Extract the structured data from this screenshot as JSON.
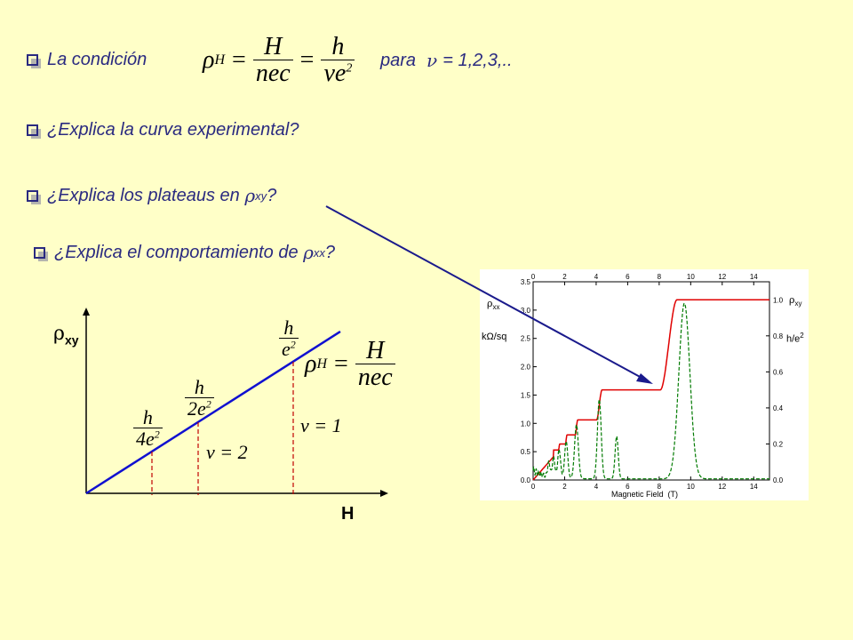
{
  "bullets": {
    "b1_text": "La condición",
    "b1_para": "para",
    "b1_nu": "ν",
    "b1_values": "= 1,2,3,..",
    "b2": "¿Explica la curva experimental?",
    "b3_pre": "¿Explica los plateaus en ",
    "b3_rho": "ρ",
    "b3_sub": "xy",
    "b3_post": "?",
    "b4_pre": "¿Explica el comportamiento de ",
    "b4_rho": "ρ",
    "b4_sub": "xx",
    "b4_post": "?"
  },
  "formula": {
    "rho": "ρ",
    "sub": "H",
    "eq": "=",
    "num1": "H",
    "den1": "nec",
    "num2": "h",
    "den2_nu": "ν",
    "den2_e": "e",
    "den2_exp": "2"
  },
  "diagram": {
    "y_label_rho": "ρ",
    "y_label_sub": "xy",
    "x_label": "H",
    "frac_h": "h",
    "frac_4e2": "4e",
    "frac_2e2": "2e",
    "frac_e2": "e",
    "exp": "2",
    "nu2": "ν = 2",
    "nu1": "ν = 1"
  },
  "experiment": {
    "top_ticks": [
      "0",
      "2",
      "4",
      "6",
      "8",
      "10",
      "12",
      "14"
    ],
    "bottom_ticks": [
      "0",
      "2",
      "4",
      "6",
      "8",
      "10",
      "12",
      "14"
    ],
    "left_ticks": [
      "0.0",
      "0.5",
      "1.0",
      "1.5",
      "2.0",
      "2.5",
      "3.0",
      "3.5"
    ],
    "right_ticks": [
      "0.0",
      "0.2",
      "0.4",
      "0.6",
      "0.8",
      "1.0"
    ],
    "xlabel": "Magnetic Field  (T)",
    "left_label_rho": "ρ",
    "left_label_sub": "xx",
    "left_unit": "kΩ/sq",
    "right_label_rho": "ρ",
    "right_label_sub": "xy",
    "right_unit": "h/e",
    "right_unit_exp": "2",
    "colors": {
      "rho_xy": "#e00000",
      "rho_xx": "#007a00",
      "arrow": "#1a1a8c"
    }
  }
}
